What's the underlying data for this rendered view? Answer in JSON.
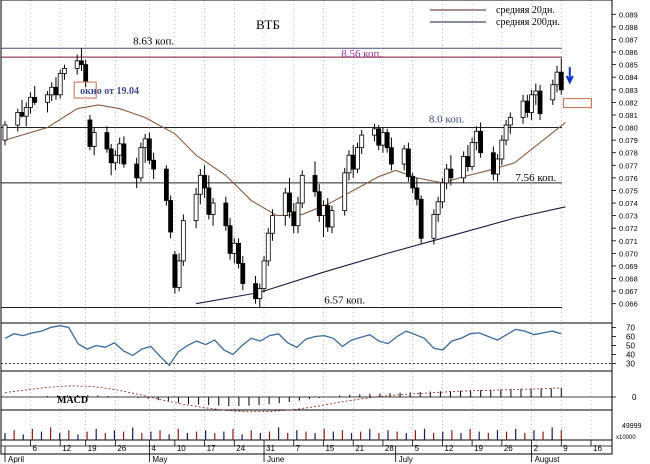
{
  "chart_data": {
    "type": "candlestick",
    "title": "ВТБ",
    "legend": [
      {
        "label": "средняя 20дн.",
        "color": "#5a1e1e"
      },
      {
        "label": "средняя 200дн.",
        "color": "#1a1a40"
      }
    ],
    "y_ticks": [
      "0.089",
      "0.088",
      "0.087",
      "0.086",
      "0.085",
      "0.084",
      "0.083",
      "0.082",
      "0.081",
      "0.080",
      "0.079",
      "0.078",
      "0.077",
      "0.076",
      "0.075",
      "0.074",
      "0.073",
      "0.072",
      "0.071",
      "0.070",
      "0.069",
      "0.068",
      "0.067",
      "0.066"
    ],
    "x_ticks": [
      {
        "day": 6,
        "label": "6"
      },
      {
        "day": 13,
        "label": "12"
      },
      {
        "day": 19,
        "label": "19"
      },
      {
        "day": 26,
        "label": "26"
      },
      {
        "day": 34,
        "label": "4"
      },
      {
        "day": 40,
        "label": "10"
      },
      {
        "day": 47,
        "label": "17"
      },
      {
        "day": 54,
        "label": "24"
      },
      {
        "day": 61,
        "label": "31"
      },
      {
        "day": 68,
        "label": "7"
      },
      {
        "day": 75,
        "label": "15"
      },
      {
        "day": 82,
        "label": "21"
      },
      {
        "day": 89,
        "label": "28"
      },
      {
        "day": 96,
        "label": "5"
      },
      {
        "day": 103,
        "label": "12"
      },
      {
        "day": 110,
        "label": "19"
      },
      {
        "day": 117,
        "label": "26"
      },
      {
        "day": 124,
        "label": "2"
      },
      {
        "day": 131,
        "label": "9"
      },
      {
        "day": 138,
        "label": "16"
      }
    ],
    "month_labels": [
      {
        "day": 0,
        "label": "April"
      },
      {
        "day": 34,
        "label": "May"
      },
      {
        "day": 61,
        "label": "June"
      },
      {
        "day": 92,
        "label": "July"
      },
      {
        "day": 124,
        "label": "August"
      }
    ],
    "levels": [
      {
        "value": 0.0863,
        "label": "8.63 коп.",
        "color": "#4b4b7a"
      },
      {
        "value": 0.0856,
        "label": "8.56 коп.",
        "color": "#7a1030"
      },
      {
        "value": 0.08,
        "label": "8.0 коп.",
        "color": "#222222"
      },
      {
        "value": 0.0756,
        "label": "7.56 коп.",
        "color": "#222222"
      },
      {
        "value": 0.0657,
        "label": "6.57 коп.",
        "color": "#222222"
      }
    ],
    "annotation": {
      "label": "окно от 19.04",
      "day": 21,
      "value": 0.0829
    },
    "candles": [
      {
        "d": 0,
        "o": 0.079,
        "h": 0.0805,
        "l": 0.0786,
        "c": 0.0802
      },
      {
        "d": 3,
        "o": 0.0802,
        "h": 0.0815,
        "l": 0.0797,
        "c": 0.0812
      },
      {
        "d": 4,
        "o": 0.0812,
        "h": 0.0822,
        "l": 0.0808,
        "c": 0.0809
      },
      {
        "d": 5,
        "o": 0.0809,
        "h": 0.082,
        "l": 0.0801,
        "c": 0.0816
      },
      {
        "d": 6,
        "o": 0.0816,
        "h": 0.0828,
        "l": 0.0811,
        "c": 0.0824
      },
      {
        "d": 7,
        "o": 0.0824,
        "h": 0.0833,
        "l": 0.0818,
        "c": 0.082
      },
      {
        "d": 10,
        "o": 0.082,
        "h": 0.0829,
        "l": 0.0812,
        "c": 0.0826
      },
      {
        "d": 11,
        "o": 0.0826,
        "h": 0.0836,
        "l": 0.0821,
        "c": 0.0832
      },
      {
        "d": 12,
        "o": 0.0832,
        "h": 0.084,
        "l": 0.0822,
        "c": 0.0826
      },
      {
        "d": 13,
        "o": 0.0826,
        "h": 0.0846,
        "l": 0.0823,
        "c": 0.0843
      },
      {
        "d": 14,
        "o": 0.0843,
        "h": 0.085,
        "l": 0.0838,
        "c": 0.0847
      },
      {
        "d": 17,
        "o": 0.0847,
        "h": 0.0858,
        "l": 0.0842,
        "c": 0.0853
      },
      {
        "d": 18,
        "o": 0.0853,
        "h": 0.0863,
        "l": 0.0845,
        "c": 0.085
      },
      {
        "d": 19,
        "o": 0.085,
        "h": 0.0854,
        "l": 0.0832,
        "c": 0.0837
      },
      {
        "d": 20,
        "o": 0.0806,
        "h": 0.081,
        "l": 0.0782,
        "c": 0.0785
      },
      {
        "d": 21,
        "o": 0.0785,
        "h": 0.08,
        "l": 0.0778,
        "c": 0.0796
      },
      {
        "d": 24,
        "o": 0.0796,
        "h": 0.0801,
        "l": 0.078,
        "c": 0.0783
      },
      {
        "d": 25,
        "o": 0.0783,
        "h": 0.0787,
        "l": 0.0762,
        "c": 0.0772
      },
      {
        "d": 26,
        "o": 0.0772,
        "h": 0.0782,
        "l": 0.0766,
        "c": 0.0778
      },
      {
        "d": 27,
        "o": 0.0778,
        "h": 0.0792,
        "l": 0.0771,
        "c": 0.0787
      },
      {
        "d": 28,
        "o": 0.0787,
        "h": 0.0793,
        "l": 0.0768,
        "c": 0.0771
      },
      {
        "d": 31,
        "o": 0.0771,
        "h": 0.0776,
        "l": 0.0752,
        "c": 0.076
      },
      {
        "d": 32,
        "o": 0.076,
        "h": 0.0788,
        "l": 0.0757,
        "c": 0.0784
      },
      {
        "d": 33,
        "o": 0.0784,
        "h": 0.0795,
        "l": 0.0772,
        "c": 0.0791
      },
      {
        "d": 34,
        "o": 0.0791,
        "h": 0.0796,
        "l": 0.0771,
        "c": 0.0774
      },
      {
        "d": 35,
        "o": 0.0774,
        "h": 0.078,
        "l": 0.0759,
        "c": 0.0767
      },
      {
        "d": 38,
        "o": 0.0767,
        "h": 0.077,
        "l": 0.0738,
        "c": 0.0742
      },
      {
        "d": 39,
        "o": 0.0742,
        "h": 0.0746,
        "l": 0.0712,
        "c": 0.0717
      },
      {
        "d": 40,
        "o": 0.0699,
        "h": 0.0702,
        "l": 0.0668,
        "c": 0.0673
      },
      {
        "d": 41,
        "o": 0.0673,
        "h": 0.07,
        "l": 0.067,
        "c": 0.0694
      },
      {
        "d": 42,
        "o": 0.0694,
        "h": 0.0731,
        "l": 0.069,
        "c": 0.0726
      },
      {
        "d": 45,
        "o": 0.0726,
        "h": 0.0752,
        "l": 0.072,
        "c": 0.0747
      },
      {
        "d": 46,
        "o": 0.0747,
        "h": 0.0767,
        "l": 0.0739,
        "c": 0.0762
      },
      {
        "d": 47,
        "o": 0.0762,
        "h": 0.077,
        "l": 0.0744,
        "c": 0.0752
      },
      {
        "d": 48,
        "o": 0.0752,
        "h": 0.0762,
        "l": 0.0727,
        "c": 0.0731
      },
      {
        "d": 49,
        "o": 0.0731,
        "h": 0.0744,
        "l": 0.0722,
        "c": 0.074
      },
      {
        "d": 52,
        "o": 0.074,
        "h": 0.0745,
        "l": 0.0718,
        "c": 0.0722
      },
      {
        "d": 53,
        "o": 0.0722,
        "h": 0.0728,
        "l": 0.0695,
        "c": 0.07
      },
      {
        "d": 54,
        "o": 0.07,
        "h": 0.0712,
        "l": 0.0692,
        "c": 0.0708
      },
      {
        "d": 55,
        "o": 0.0708,
        "h": 0.0712,
        "l": 0.0688,
        "c": 0.0692
      },
      {
        "d": 56,
        "o": 0.0692,
        "h": 0.0698,
        "l": 0.0671,
        "c": 0.0676
      },
      {
        "d": 59,
        "o": 0.0676,
        "h": 0.0682,
        "l": 0.066,
        "c": 0.0664
      },
      {
        "d": 60,
        "o": 0.0664,
        "h": 0.0676,
        "l": 0.0657,
        "c": 0.0672
      },
      {
        "d": 61,
        "o": 0.0672,
        "h": 0.0698,
        "l": 0.0669,
        "c": 0.0694
      },
      {
        "d": 62,
        "o": 0.0694,
        "h": 0.072,
        "l": 0.069,
        "c": 0.0716
      },
      {
        "d": 63,
        "o": 0.0716,
        "h": 0.0735,
        "l": 0.071,
        "c": 0.073
      },
      {
        "d": 66,
        "o": 0.073,
        "h": 0.0752,
        "l": 0.0722,
        "c": 0.0748
      },
      {
        "d": 67,
        "o": 0.0748,
        "h": 0.076,
        "l": 0.0728,
        "c": 0.0733
      },
      {
        "d": 68,
        "o": 0.0733,
        "h": 0.074,
        "l": 0.0716,
        "c": 0.0722
      },
      {
        "d": 69,
        "o": 0.0722,
        "h": 0.0745,
        "l": 0.0716,
        "c": 0.074
      },
      {
        "d": 70,
        "o": 0.074,
        "h": 0.0766,
        "l": 0.0736,
        "c": 0.0762
      },
      {
        "d": 73,
        "o": 0.0762,
        "h": 0.0773,
        "l": 0.0745,
        "c": 0.0749
      },
      {
        "d": 74,
        "o": 0.0749,
        "h": 0.0755,
        "l": 0.0725,
        "c": 0.073
      },
      {
        "d": 75,
        "o": 0.073,
        "h": 0.0742,
        "l": 0.0713,
        "c": 0.0738
      },
      {
        "d": 76,
        "o": 0.0738,
        "h": 0.0744,
        "l": 0.0717,
        "c": 0.0721
      },
      {
        "d": 77,
        "o": 0.0721,
        "h": 0.0738,
        "l": 0.0716,
        "c": 0.0734
      },
      {
        "d": 80,
        "o": 0.0734,
        "h": 0.0768,
        "l": 0.073,
        "c": 0.0764
      },
      {
        "d": 81,
        "o": 0.0764,
        "h": 0.0782,
        "l": 0.0758,
        "c": 0.0778
      },
      {
        "d": 82,
        "o": 0.0778,
        "h": 0.0786,
        "l": 0.076,
        "c": 0.0767
      },
      {
        "d": 83,
        "o": 0.0767,
        "h": 0.0788,
        "l": 0.0764,
        "c": 0.0784
      },
      {
        "d": 84,
        "o": 0.0784,
        "h": 0.0798,
        "l": 0.0779,
        "c": 0.0794
      },
      {
        "d": 87,
        "o": 0.0794,
        "h": 0.0803,
        "l": 0.0789,
        "c": 0.0799
      },
      {
        "d": 88,
        "o": 0.0799,
        "h": 0.0802,
        "l": 0.0782,
        "c": 0.0786
      },
      {
        "d": 89,
        "o": 0.0786,
        "h": 0.08,
        "l": 0.078,
        "c": 0.0796
      },
      {
        "d": 90,
        "o": 0.0796,
        "h": 0.0799,
        "l": 0.078,
        "c": 0.0784
      },
      {
        "d": 91,
        "o": 0.0784,
        "h": 0.0792,
        "l": 0.0766,
        "c": 0.0771
      },
      {
        "d": 94,
        "o": 0.0771,
        "h": 0.0786,
        "l": 0.0766,
        "c": 0.0783
      },
      {
        "d": 95,
        "o": 0.0783,
        "h": 0.0788,
        "l": 0.0757,
        "c": 0.0761
      },
      {
        "d": 96,
        "o": 0.0761,
        "h": 0.0764,
        "l": 0.0748,
        "c": 0.0752
      },
      {
        "d": 97,
        "o": 0.0752,
        "h": 0.076,
        "l": 0.0738,
        "c": 0.0743
      },
      {
        "d": 98,
        "o": 0.0743,
        "h": 0.0746,
        "l": 0.0708,
        "c": 0.0712
      },
      {
        "d": 101,
        "o": 0.0712,
        "h": 0.0735,
        "l": 0.0707,
        "c": 0.0731
      },
      {
        "d": 102,
        "o": 0.0731,
        "h": 0.0745,
        "l": 0.0725,
        "c": 0.0741
      },
      {
        "d": 103,
        "o": 0.0741,
        "h": 0.076,
        "l": 0.0736,
        "c": 0.0756
      },
      {
        "d": 104,
        "o": 0.0756,
        "h": 0.0771,
        "l": 0.0751,
        "c": 0.0767
      },
      {
        "d": 105,
        "o": 0.0767,
        "h": 0.0778,
        "l": 0.0754,
        "c": 0.076
      },
      {
        "d": 108,
        "o": 0.076,
        "h": 0.0781,
        "l": 0.0756,
        "c": 0.0777
      },
      {
        "d": 109,
        "o": 0.0777,
        "h": 0.0786,
        "l": 0.0765,
        "c": 0.0769
      },
      {
        "d": 110,
        "o": 0.0769,
        "h": 0.0792,
        "l": 0.0766,
        "c": 0.0788
      },
      {
        "d": 111,
        "o": 0.0788,
        "h": 0.0801,
        "l": 0.0782,
        "c": 0.0797
      },
      {
        "d": 112,
        "o": 0.0797,
        "h": 0.0804,
        "l": 0.0776,
        "c": 0.078
      },
      {
        "d": 115,
        "o": 0.078,
        "h": 0.0785,
        "l": 0.0758,
        "c": 0.0763
      },
      {
        "d": 116,
        "o": 0.0763,
        "h": 0.0779,
        "l": 0.0757,
        "c": 0.0775
      },
      {
        "d": 117,
        "o": 0.0775,
        "h": 0.0794,
        "l": 0.077,
        "c": 0.079
      },
      {
        "d": 118,
        "o": 0.079,
        "h": 0.0806,
        "l": 0.0786,
        "c": 0.0802
      },
      {
        "d": 119,
        "o": 0.0802,
        "h": 0.0812,
        "l": 0.0795,
        "c": 0.0808
      },
      {
        "d": 122,
        "o": 0.0808,
        "h": 0.0826,
        "l": 0.0803,
        "c": 0.0821
      },
      {
        "d": 123,
        "o": 0.0821,
        "h": 0.0826,
        "l": 0.0808,
        "c": 0.0812
      },
      {
        "d": 124,
        "o": 0.0812,
        "h": 0.083,
        "l": 0.0806,
        "c": 0.0826
      },
      {
        "d": 125,
        "o": 0.0826,
        "h": 0.0835,
        "l": 0.0818,
        "c": 0.0829
      },
      {
        "d": 126,
        "o": 0.0829,
        "h": 0.0834,
        "l": 0.0806,
        "c": 0.0811
      },
      {
        "d": 129,
        "o": 0.0822,
        "h": 0.0838,
        "l": 0.0818,
        "c": 0.0834
      },
      {
        "d": 130,
        "o": 0.0834,
        "h": 0.0849,
        "l": 0.0828,
        "c": 0.0844
      },
      {
        "d": 131,
        "o": 0.0844,
        "h": 0.0855,
        "l": 0.0826,
        "c": 0.083
      }
    ],
    "ma20": [
      {
        "d": 0,
        "v": 0.079
      },
      {
        "d": 10,
        "v": 0.08
      },
      {
        "d": 17,
        "v": 0.0815
      },
      {
        "d": 22,
        "v": 0.0818
      },
      {
        "d": 27,
        "v": 0.0815
      },
      {
        "d": 33,
        "v": 0.0808
      },
      {
        "d": 40,
        "v": 0.0795
      },
      {
        "d": 45,
        "v": 0.0778
      },
      {
        "d": 52,
        "v": 0.0762
      },
      {
        "d": 58,
        "v": 0.0742
      },
      {
        "d": 64,
        "v": 0.073
      },
      {
        "d": 70,
        "v": 0.0731
      },
      {
        "d": 76,
        "v": 0.0739
      },
      {
        "d": 82,
        "v": 0.075
      },
      {
        "d": 88,
        "v": 0.0761
      },
      {
        "d": 92,
        "v": 0.0766
      },
      {
        "d": 97,
        "v": 0.076
      },
      {
        "d": 103,
        "v": 0.0756
      },
      {
        "d": 108,
        "v": 0.0761
      },
      {
        "d": 114,
        "v": 0.0766
      },
      {
        "d": 120,
        "v": 0.0772
      },
      {
        "d": 126,
        "v": 0.0788
      },
      {
        "d": 132,
        "v": 0.0804
      }
    ],
    "ma200": [
      {
        "d": 45,
        "v": 0.066
      },
      {
        "d": 60,
        "v": 0.0669
      },
      {
        "d": 75,
        "v": 0.0685
      },
      {
        "d": 90,
        "v": 0.07
      },
      {
        "d": 105,
        "v": 0.0714
      },
      {
        "d": 120,
        "v": 0.0728
      },
      {
        "d": 132,
        "v": 0.0737
      }
    ],
    "rsi": {
      "ticks": [
        "70",
        "60",
        "50",
        "40",
        "30"
      ],
      "values": [
        58,
        63,
        61,
        64,
        66,
        70,
        72,
        70,
        52,
        46,
        50,
        48,
        53,
        44,
        39,
        46,
        49,
        38,
        28,
        43,
        50,
        55,
        51,
        56,
        45,
        40,
        50,
        58,
        55,
        61,
        63,
        53,
        48,
        57,
        60,
        61,
        58,
        49,
        56,
        59,
        62,
        55,
        52,
        60,
        66,
        62,
        58,
        47,
        45,
        55,
        58,
        63,
        64,
        60,
        56,
        62,
        68,
        66,
        62,
        64,
        66,
        63
      ]
    },
    "macd": {
      "label": "MACD",
      "tick": "0",
      "line": [
        0.25,
        0.4,
        0.55,
        0.62,
        0.58,
        0.4,
        0.15,
        -0.15,
        -0.4,
        -0.6,
        -0.75,
        -0.82,
        -0.8,
        -0.7,
        -0.52,
        -0.3,
        -0.1,
        0.05,
        0.15,
        0.22,
        0.3,
        0.35,
        0.38,
        0.42,
        0.45,
        0.5
      ],
      "hist": [
        0.05,
        0.08,
        0.1,
        0.12,
        0.1,
        0.08,
        0.05,
        0.02,
        -0.02,
        -0.05,
        -0.1,
        -0.18,
        -0.25,
        -0.32,
        -0.38,
        -0.42,
        -0.45,
        -0.48,
        -0.5,
        -0.5,
        -0.48,
        -0.45,
        -0.4,
        -0.35,
        -0.28,
        -0.2,
        -0.12,
        -0.05,
        0.02,
        0.08,
        0.12,
        0.15,
        0.18,
        0.2,
        0.22,
        0.24,
        0.26,
        0.28,
        0.3,
        0.32,
        0.34,
        0.35,
        0.36,
        0.38,
        0.4,
        0.42,
        0.44,
        0.45,
        0.46,
        0.47,
        0.48,
        0.5
      ]
    },
    "volume": {
      "ticks": [
        "49999",
        "x10000"
      ],
      "values": [
        0.5,
        0.7,
        0.4,
        0.8,
        0.6,
        0.9,
        0.5,
        0.7,
        0.4,
        0.6,
        0.8,
        0.5,
        0.7,
        0.6,
        0.9,
        0.5,
        0.6,
        0.7,
        0.4,
        0.8,
        0.5,
        0.6,
        0.7,
        0.5,
        0.6,
        0.8,
        0.4,
        0.7,
        0.5,
        0.6,
        0.9,
        0.5,
        0.7,
        0.6,
        0.5,
        0.8,
        0.6,
        0.7,
        0.5,
        0.6,
        0.8,
        0.5,
        0.7,
        0.6,
        0.5,
        0.7,
        0.8,
        0.5,
        0.6,
        0.7,
        0.5,
        0.8,
        0.6,
        0.5,
        0.7,
        0.6,
        0.8,
        0.5,
        0.7,
        0.6,
        0.9,
        0.7
      ]
    }
  }
}
